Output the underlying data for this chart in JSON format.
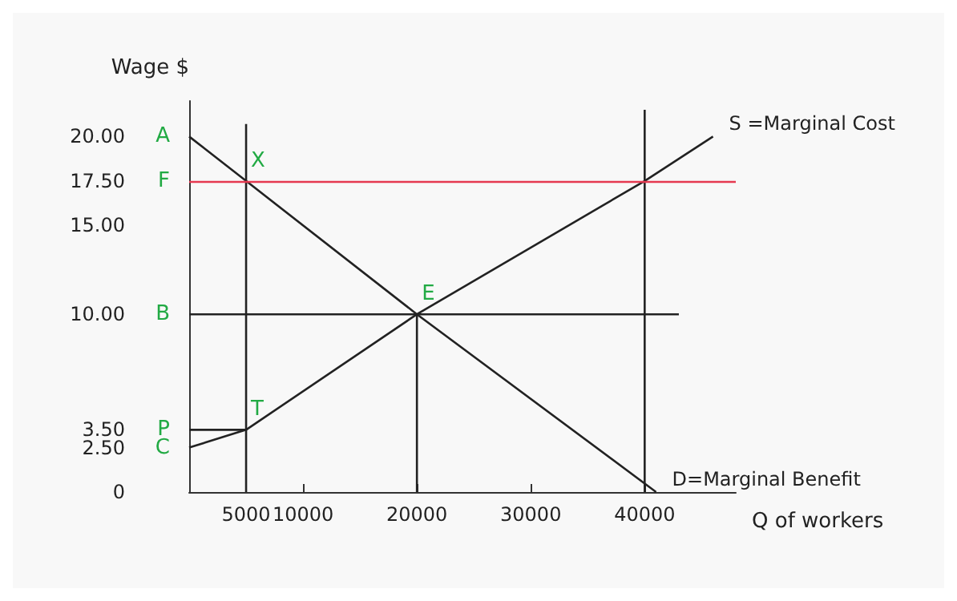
{
  "chart_data": {
    "type": "line",
    "ylabel": "Wage $",
    "xlabel": "Q of workers",
    "xlim": [
      0,
      48000
    ],
    "ylim": [
      0,
      22
    ],
    "xticks": [
      5000,
      10000,
      20000,
      30000,
      40000
    ],
    "yticks": [
      {
        "value": 0,
        "label": "0"
      },
      {
        "value": 2.5,
        "label": "2.50"
      },
      {
        "value": 3.5,
        "label": "3.50"
      },
      {
        "value": 10,
        "label": "10.00"
      },
      {
        "value": 15,
        "label": "15.00"
      },
      {
        "value": 17.5,
        "label": "17.50"
      },
      {
        "value": 20,
        "label": "20.00"
      }
    ],
    "series": [
      {
        "name": "S =Marginal Cost",
        "color": "#222222",
        "x": [
          0,
          5000,
          20000,
          40000,
          46000
        ],
        "values": [
          2.5,
          3.5,
          10,
          17.5,
          20
        ]
      },
      {
        "name": "D=Marginal Benefit",
        "color": "#222222",
        "x": [
          0,
          5000,
          20000,
          41000
        ],
        "values": [
          20,
          17.5,
          10,
          0
        ]
      },
      {
        "color": "#222222",
        "x": [
          0,
          43000
        ],
        "values": [
          10,
          10
        ]
      },
      {
        "color": "#222222",
        "x": [
          0,
          5000
        ],
        "values": [
          3.5,
          3.5
        ]
      },
      {
        "color": "#222222",
        "x": [
          5000,
          5000
        ],
        "values": [
          0,
          20.7
        ]
      },
      {
        "color": "#222222",
        "x": [
          20000,
          20000
        ],
        "values": [
          0,
          10
        ]
      },
      {
        "color": "#222222",
        "x": [
          40000,
          40000
        ],
        "values": [
          0,
          21.5
        ]
      }
    ],
    "ref_lines": [
      {
        "axis": "y",
        "value": 17.5,
        "color": "#e53950"
      }
    ],
    "annotations": [
      {
        "text": "A",
        "x": 0,
        "y": 20
      },
      {
        "text": "F",
        "x": 0,
        "y": 17.5
      },
      {
        "text": "B",
        "x": 0,
        "y": 10
      },
      {
        "text": "P",
        "x": 0,
        "y": 3.5
      },
      {
        "text": "C",
        "x": 0,
        "y": 2.5
      },
      {
        "text": "X",
        "x": 5000,
        "y": 17.5
      },
      {
        "text": "E",
        "x": 20000,
        "y": 10
      },
      {
        "text": "T",
        "x": 5000,
        "y": 3.5
      }
    ],
    "grid": false,
    "legend": false,
    "marker": "none",
    "line_style": "solid"
  }
}
